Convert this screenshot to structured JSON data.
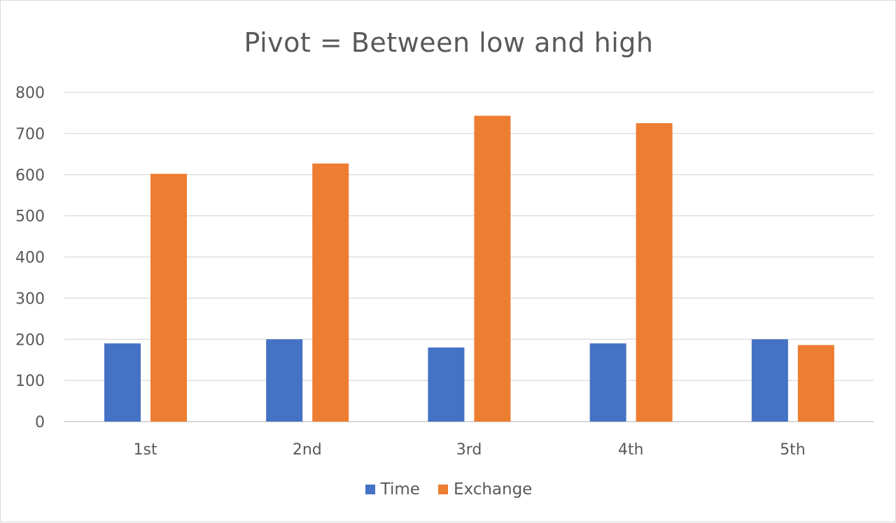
{
  "chart_data": {
    "type": "bar",
    "title": "Pivot = Between low and high",
    "categories": [
      "1st",
      "2nd",
      "3rd",
      "4th",
      "5th"
    ],
    "series": [
      {
        "name": "Time",
        "color": "#4472c4",
        "values": [
          190,
          200,
          180,
          190,
          200
        ]
      },
      {
        "name": "Exchange",
        "color": "#ed7d31",
        "values": [
          602,
          627,
          743,
          725,
          186
        ]
      }
    ],
    "ylim": [
      0,
      800
    ],
    "yticks": [
      0,
      100,
      200,
      300,
      400,
      500,
      600,
      700,
      800
    ],
    "grid": true,
    "legend": "bottom"
  }
}
